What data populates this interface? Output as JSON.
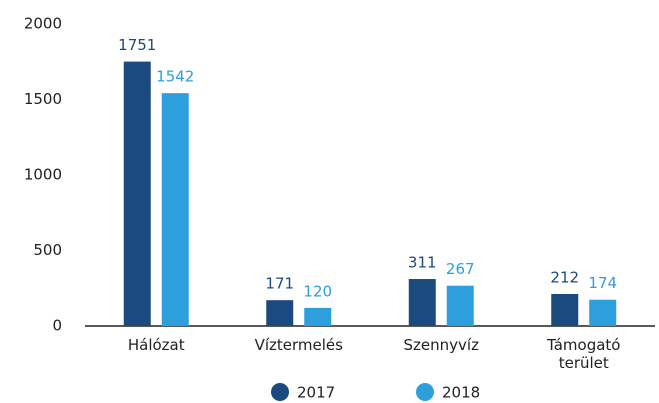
{
  "chart_data": {
    "type": "bar",
    "categories": [
      "Hálózat",
      "Víztermelés",
      "Szennyvíz",
      "Támogató terület"
    ],
    "series": [
      {
        "name": "2017",
        "color": "#1b4a7e",
        "values": [
          1751,
          171,
          311,
          212
        ]
      },
      {
        "name": "2018",
        "color": "#2d9fdc",
        "values": [
          1542,
          120,
          267,
          174
        ]
      }
    ],
    "ylim": [
      0,
      2000
    ],
    "yticks": [
      0,
      500,
      1000,
      1500,
      2000
    ],
    "grid": false,
    "legend": "bottom"
  }
}
